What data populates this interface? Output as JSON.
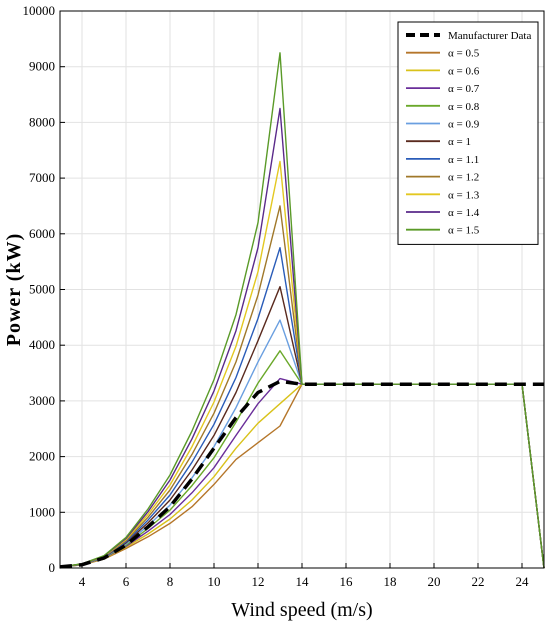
{
  "chart_data": {
    "type": "line",
    "title": "",
    "xlabel": "Wind speed (m/s)",
    "ylabel": "Power (kW)",
    "xlim": [
      3,
      25
    ],
    "ylim": [
      0,
      10000
    ],
    "xticks": [
      4,
      6,
      8,
      10,
      12,
      14,
      16,
      18,
      20,
      22,
      24
    ],
    "yticks": [
      0,
      1000,
      2000,
      3000,
      4000,
      5000,
      6000,
      7000,
      8000,
      9000,
      10000
    ],
    "grid": true,
    "legend_position": "top-right",
    "x": [
      3,
      4,
      5,
      6,
      7,
      8,
      9,
      10,
      11,
      12,
      13,
      14,
      15,
      16,
      17,
      18,
      19,
      20,
      21,
      22,
      23,
      24,
      25
    ],
    "series": [
      {
        "name": "Manufacturer Data",
        "color": "#000000",
        "dashed": true,
        "values": [
          20,
          60,
          180,
          410,
          740,
          1100,
          1600,
          2150,
          2700,
          3150,
          3350,
          3300,
          3300,
          3300,
          3300,
          3300,
          3300,
          3300,
          3300,
          3300,
          3300,
          3300,
          3300
        ]
      },
      {
        "name": "α = 0.5",
        "color": "#b5762a",
        "values": [
          20,
          55,
          160,
          350,
          560,
          800,
          1100,
          1500,
          1950,
          2250,
          2550,
          3300,
          3300,
          3300,
          3300,
          3300,
          3300,
          3300,
          3300,
          3300,
          3300,
          3300,
          0
        ]
      },
      {
        "name": "α = 0.6",
        "color": "#d9c21a",
        "values": [
          20,
          58,
          170,
          375,
          610,
          880,
          1220,
          1640,
          2150,
          2600,
          2950,
          3300,
          3300,
          3300,
          3300,
          3300,
          3300,
          3300,
          3300,
          3300,
          3300,
          3300,
          0
        ]
      },
      {
        "name": "α = 0.7",
        "color": "#6a2e9a",
        "values": [
          20,
          60,
          180,
          390,
          660,
          960,
          1350,
          1800,
          2380,
          2950,
          3400,
          3300,
          3300,
          3300,
          3300,
          3300,
          3300,
          3300,
          3300,
          3300,
          3300,
          3300,
          0
        ]
      },
      {
        "name": "α = 0.8",
        "color": "#6aa82a",
        "values": [
          20,
          62,
          185,
          410,
          710,
          1040,
          1480,
          1980,
          2620,
          3320,
          3900,
          3300,
          3300,
          3300,
          3300,
          3300,
          3300,
          3300,
          3300,
          3300,
          3300,
          3300,
          0
        ]
      },
      {
        "name": "α = 0.9",
        "color": "#6a9fe0",
        "values": [
          20,
          64,
          190,
          430,
          760,
          1130,
          1620,
          2180,
          2880,
          3700,
          4450,
          3300,
          3300,
          3300,
          3300,
          3300,
          3300,
          3300,
          3300,
          3300,
          3300,
          3300,
          0
        ]
      },
      {
        "name": "α = 1",
        "color": "#5a2a1e",
        "values": [
          20,
          66,
          195,
          450,
          810,
          1220,
          1760,
          2380,
          3150,
          4080,
          5050,
          3300,
          3300,
          3300,
          3300,
          3300,
          3300,
          3300,
          3300,
          3300,
          3300,
          3300,
          0
        ]
      },
      {
        "name": "α = 1.1",
        "color": "#2a5cb8",
        "values": [
          20,
          68,
          200,
          470,
          860,
          1310,
          1900,
          2580,
          3420,
          4480,
          5750,
          3300,
          3300,
          3300,
          3300,
          3300,
          3300,
          3300,
          3300,
          3300,
          3300,
          3300,
          0
        ]
      },
      {
        "name": "α = 1.2",
        "color": "#a0782a",
        "values": [
          20,
          70,
          205,
          490,
          910,
          1400,
          2040,
          2780,
          3700,
          4900,
          6500,
          3300,
          3300,
          3300,
          3300,
          3300,
          3300,
          3300,
          3300,
          3300,
          3300,
          3300,
          0
        ]
      },
      {
        "name": "α = 1.3",
        "color": "#e3c820",
        "values": [
          20,
          72,
          210,
          510,
          960,
          1490,
          2180,
          2980,
          3980,
          5320,
          7300,
          3300,
          3300,
          3300,
          3300,
          3300,
          3300,
          3300,
          3300,
          3300,
          3300,
          3300,
          0
        ]
      },
      {
        "name": "α = 1.4",
        "color": "#5a2a8a",
        "values": [
          20,
          74,
          215,
          530,
          1010,
          1580,
          2320,
          3180,
          4260,
          5750,
          8250,
          3300,
          3300,
          3300,
          3300,
          3300,
          3300,
          3300,
          3300,
          3300,
          3300,
          3300,
          0
        ]
      },
      {
        "name": "α = 1.5",
        "color": "#5a9a28",
        "values": [
          20,
          76,
          220,
          550,
          1060,
          1670,
          2460,
          3380,
          4550,
          6200,
          9250,
          3300,
          3300,
          3300,
          3300,
          3300,
          3300,
          3300,
          3300,
          3300,
          3300,
          3300,
          0
        ]
      }
    ]
  }
}
